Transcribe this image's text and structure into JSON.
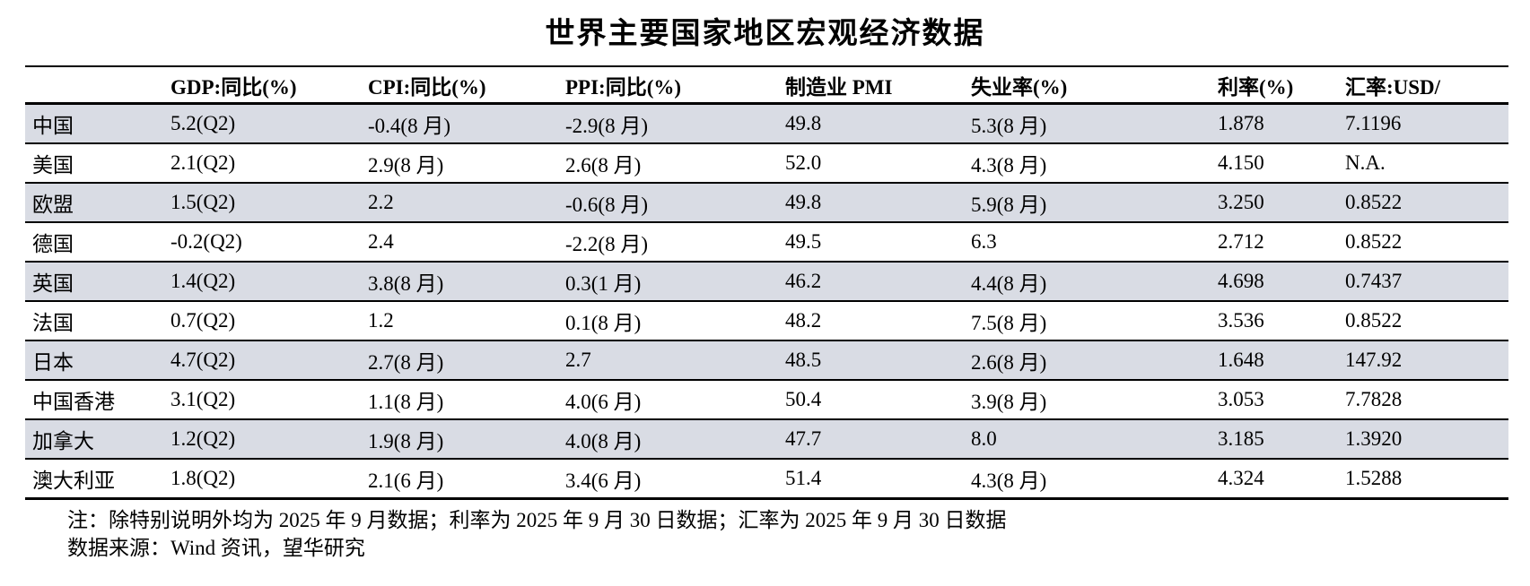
{
  "title": "世界主要国家地区宏观经济数据",
  "colors": {
    "striped_row": "#D9DCE4",
    "rule": "#000000",
    "text": "#000000"
  },
  "table": {
    "columns": [
      "",
      "GDP:同比(%)",
      "CPI:同比(%)",
      "PPI:同比(%)",
      "制造业 PMI",
      "失业率(%)",
      "利率(%)",
      "汇率:USD/"
    ],
    "rows": [
      {
        "name": "中国",
        "values": [
          "5.2(Q2)",
          "-0.4(8 月)",
          "-2.9(8 月)",
          "49.8",
          "5.3(8 月)",
          "1.878",
          "7.1196"
        ]
      },
      {
        "name": "美国",
        "values": [
          "2.1(Q2)",
          "2.9(8 月)",
          "2.6(8 月)",
          "52.0",
          "4.3(8 月)",
          "4.150",
          "N.A."
        ]
      },
      {
        "name": "欧盟",
        "values": [
          "1.5(Q2)",
          "2.2",
          "-0.6(8 月)",
          "49.8",
          "5.9(8 月)",
          "3.250",
          "0.8522"
        ]
      },
      {
        "name": "德国",
        "values": [
          "-0.2(Q2)",
          "2.4",
          "-2.2(8 月)",
          "49.5",
          "6.3",
          "2.712",
          "0.8522"
        ]
      },
      {
        "name": "英国",
        "values": [
          "1.4(Q2)",
          "3.8(8 月)",
          "0.3(1 月)",
          "46.2",
          "4.4(8 月)",
          "4.698",
          "0.7437"
        ]
      },
      {
        "name": "法国",
        "values": [
          "0.7(Q2)",
          "1.2",
          "0.1(8 月)",
          "48.2",
          "7.5(8 月)",
          "3.536",
          "0.8522"
        ]
      },
      {
        "name": "日本",
        "values": [
          "4.7(Q2)",
          "2.7(8 月)",
          "2.7",
          "48.5",
          "2.6(8 月)",
          "1.648",
          "147.92"
        ]
      },
      {
        "name": "中国香港",
        "values": [
          "3.1(Q2)",
          "1.1(8 月)",
          "4.0(6 月)",
          "50.4",
          "3.9(8 月)",
          "3.053",
          "7.7828"
        ]
      },
      {
        "name": "加拿大",
        "values": [
          "1.2(Q2)",
          "1.9(8 月)",
          "4.0(8 月)",
          "47.7",
          "8.0",
          "3.185",
          "1.3920"
        ]
      },
      {
        "name": "澳大利亚",
        "values": [
          "1.8(Q2)",
          "2.1(6 月)",
          "3.4(6 月)",
          "51.4",
          "4.3(8 月)",
          "4.324",
          "1.5288"
        ]
      }
    ]
  },
  "notes": [
    "注：除特别说明外均为 2025 年 9 月数据；利率为 2025 年 9 月 30 日数据；汇率为 2025 年 9 月 30 日数据",
    "数据来源：Wind 资讯，望华研究"
  ]
}
